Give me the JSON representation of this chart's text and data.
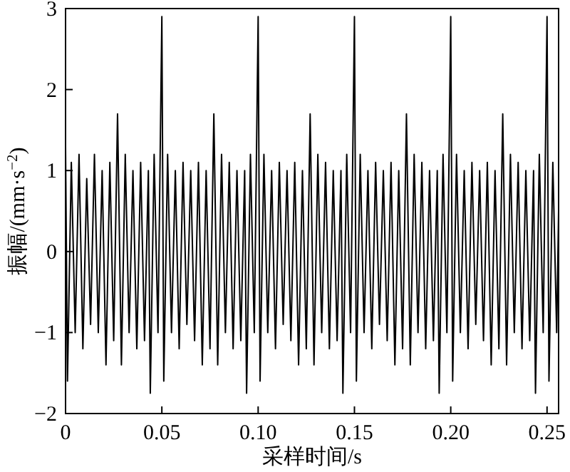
{
  "chart_data": {
    "type": "line",
    "xlabel": "采样时间/s",
    "ylabel": "振幅/(mm·s$^{−2}$)",
    "x": [
      0,
      0.001,
      0.003,
      0.005,
      0.007,
      0.009,
      0.011,
      0.013,
      0.015,
      0.017,
      0.019,
      0.021,
      0.023,
      0.025,
      0.027,
      0.029,
      0.031,
      0.033,
      0.035,
      0.037,
      0.039,
      0.041,
      0.043,
      0.044,
      0.046,
      0.048,
      0.05,
      0.051,
      0.053,
      0.055,
      0.057,
      0.059,
      0.061,
      0.063,
      0.065,
      0.067,
      0.069,
      0.071,
      0.073,
      0.075,
      0.077,
      0.079,
      0.081,
      0.083,
      0.085,
      0.087,
      0.089,
      0.091,
      0.093,
      0.094,
      0.096,
      0.098,
      0.1,
      0.101,
      0.103,
      0.105,
      0.107,
      0.109,
      0.111,
      0.113,
      0.115,
      0.117,
      0.119,
      0.121,
      0.123,
      0.125,
      0.127,
      0.129,
      0.131,
      0.133,
      0.135,
      0.137,
      0.139,
      0.141,
      0.143,
      0.144,
      0.146,
      0.148,
      0.15,
      0.151,
      0.153,
      0.155,
      0.157,
      0.159,
      0.161,
      0.163,
      0.165,
      0.167,
      0.169,
      0.171,
      0.173,
      0.175,
      0.177,
      0.179,
      0.181,
      0.183,
      0.185,
      0.187,
      0.189,
      0.191,
      0.193,
      0.194,
      0.196,
      0.198,
      0.2,
      0.201,
      0.203,
      0.205,
      0.207,
      0.209,
      0.211,
      0.213,
      0.215,
      0.217,
      0.219,
      0.221,
      0.223,
      0.225,
      0.227,
      0.229,
      0.231,
      0.233,
      0.235,
      0.237,
      0.239,
      0.241,
      0.243,
      0.244,
      0.246,
      0.248,
      0.25,
      0.251,
      0.253,
      0.255,
      0.256
    ],
    "series": [
      {
        "color": "#000000",
        "values": [
          1.3,
          -1.6,
          1.1,
          -1.0,
          1.2,
          -1.2,
          0.9,
          -0.9,
          1.2,
          -1.0,
          1.0,
          -1.4,
          1.1,
          -1.1,
          1.7,
          -1.4,
          1.2,
          -1.0,
          1.0,
          -1.2,
          1.1,
          -1.1,
          1.0,
          -1.75,
          1.2,
          -1.0,
          2.9,
          -1.6,
          1.2,
          -1.0,
          1.0,
          -1.2,
          1.1,
          -0.9,
          1.0,
          -1.1,
          1.1,
          -1.4,
          1.0,
          -1.2,
          1.7,
          -1.4,
          1.2,
          -1.0,
          1.1,
          -1.2,
          1.0,
          -1.1,
          1.0,
          -1.75,
          1.2,
          -1.0,
          2.9,
          -1.6,
          1.2,
          -1.0,
          1.0,
          -1.2,
          1.1,
          -0.9,
          1.0,
          -1.1,
          1.1,
          -1.4,
          1.0,
          -1.2,
          1.7,
          -1.4,
          1.2,
          -1.0,
          1.1,
          -1.2,
          1.0,
          -1.1,
          1.0,
          -1.75,
          1.2,
          -1.0,
          2.9,
          -1.6,
          1.2,
          -1.0,
          1.0,
          -1.2,
          1.1,
          -0.9,
          1.0,
          -1.1,
          1.1,
          -1.4,
          1.0,
          -1.2,
          1.7,
          -1.4,
          1.2,
          -1.0,
          1.1,
          -1.2,
          1.0,
          -1.1,
          1.0,
          -1.75,
          1.2,
          -1.0,
          2.9,
          -1.6,
          1.2,
          -1.0,
          1.0,
          -1.2,
          1.1,
          -0.9,
          1.0,
          -1.1,
          1.1,
          -1.4,
          1.0,
          -1.2,
          1.7,
          -1.4,
          1.2,
          -1.0,
          1.1,
          -1.2,
          1.0,
          -1.1,
          1.0,
          -1.75,
          1.2,
          -1.0,
          2.9,
          -1.6,
          1.1,
          -1.0,
          0.5
        ]
      }
    ],
    "xlim": [
      0,
      0.256
    ],
    "ylim": [
      -2,
      3
    ],
    "xticks": [
      0,
      {
        "value": 0.05,
        "label": "0.05"
      },
      {
        "value": 0.1,
        "label": "0.10"
      },
      {
        "value": 0.15,
        "label": "0.15"
      },
      {
        "value": 0.2,
        "label": "0.20"
      },
      {
        "value": 0.25,
        "label": "0.25"
      }
    ],
    "yticks": [
      -2,
      -1,
      0,
      1,
      2,
      3
    ]
  }
}
